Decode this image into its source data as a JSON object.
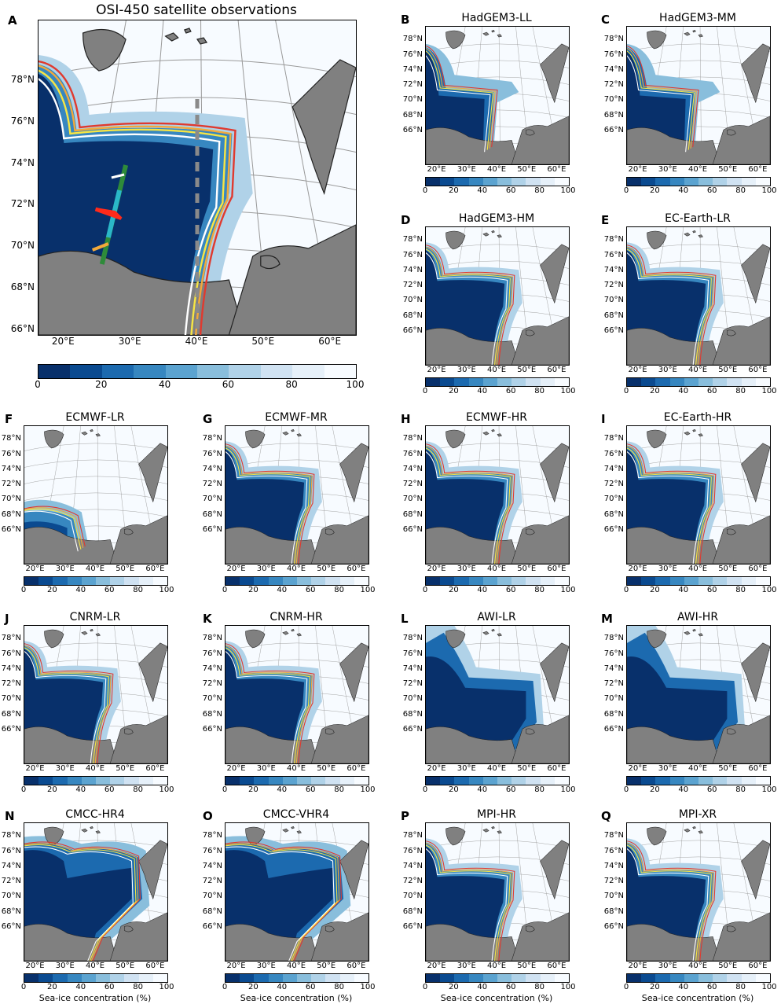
{
  "colorbar": {
    "colors": [
      "#08306b",
      "#0a4a90",
      "#1c6aaf",
      "#3787c0",
      "#5ba3d0",
      "#89bedc",
      "#b0d2e8",
      "#d0e2f2",
      "#e6f0f9",
      "#f7fbff"
    ],
    "ticks": [
      "0",
      "20",
      "40",
      "60",
      "80",
      "100"
    ],
    "label": "Sea-ice concentration (%)"
  },
  "contour_colors": {
    "red": "#e03a2f",
    "orange": "#f2a93b",
    "yellow": "#f6e544",
    "white": "#ffffff",
    "transect_cyan": "#2ab7c8",
    "transect_green": "#2e8b3a",
    "cross_section": "#8a8a8a"
  },
  "land_color": "#808080",
  "main_panel": {
    "letter": "A",
    "title": "OSI-450 satellite observations",
    "lat_labels": [
      "78°N",
      "76°N",
      "74°N",
      "72°N",
      "70°N",
      "68°N",
      "66°N"
    ],
    "lon_labels": [
      "20°E",
      "30°E",
      "40°E",
      "50°E",
      "60°E"
    ]
  },
  "small_lat_labels": [
    "78°N",
    "76°N",
    "74°N",
    "72°N",
    "70°N",
    "68°N",
    "66°N"
  ],
  "small_lon_labels": [
    "20°E",
    "30°E",
    "40°E",
    "50°E",
    "60°E"
  ],
  "panels": [
    {
      "letter": "B",
      "title": "HadGEM3-LL",
      "style": "ll"
    },
    {
      "letter": "C",
      "title": "HadGEM3-MM",
      "style": "ll"
    },
    {
      "letter": "D",
      "title": "HadGEM3-HM",
      "style": "model"
    },
    {
      "letter": "E",
      "title": "EC-Earth-LR",
      "style": "model"
    },
    {
      "letter": "F",
      "title": "ECMWF-LR",
      "style": "low"
    },
    {
      "letter": "G",
      "title": "ECMWF-MR",
      "style": "model"
    },
    {
      "letter": "H",
      "title": "ECMWF-HR",
      "style": "model"
    },
    {
      "letter": "I",
      "title": "EC-Earth-HR",
      "style": "model"
    },
    {
      "letter": "J",
      "title": "CNRM-LR",
      "style": "model"
    },
    {
      "letter": "K",
      "title": "CNRM-HR",
      "style": "model"
    },
    {
      "letter": "L",
      "title": "AWI-LR",
      "style": "awi"
    },
    {
      "letter": "M",
      "title": "AWI-HR",
      "style": "awi"
    },
    {
      "letter": "N",
      "title": "CMCC-HR4",
      "style": "full"
    },
    {
      "letter": "O",
      "title": "CMCC-VHR4",
      "style": "full"
    },
    {
      "letter": "P",
      "title": "MPI-HR",
      "style": "model"
    },
    {
      "letter": "Q",
      "title": "MPI-XR",
      "style": "model"
    }
  ]
}
